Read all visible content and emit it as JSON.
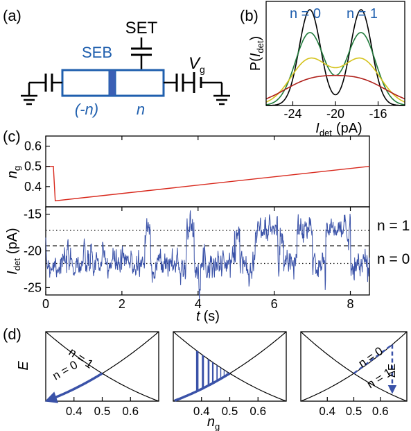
{
  "colors": {
    "blue": "#1f5fae",
    "axis": "#000000",
    "red": "#d8281c",
    "trace": "#3a52a8",
    "green": "#1f7a3a",
    "yellow": "#d4c21a",
    "darkred": "#b0201a"
  },
  "panel_a": {
    "label": "(a)",
    "set_label": "SET",
    "seb_label": "SEB",
    "vg_label": "V",
    "vg_sub": "g",
    "left_island": "(-n)",
    "right_island": "n"
  },
  "panel_b": {
    "label": "(b)",
    "n0_label": "n = 0",
    "n1_label": "n = 1",
    "ylabel_main": "P(",
    "ylabel_var": "I",
    "ylabel_sub": "det",
    "ylabel_close": ")",
    "xlabel_var": "I",
    "xlabel_sub": "det",
    "xlabel_unit": "(pA)",
    "xticks": [
      "-24",
      "-20",
      "-16"
    ]
  },
  "panel_c": {
    "label": "(c)",
    "ng_var": "n",
    "ng_sub": "g",
    "ng_yticks": [
      "0.6",
      "0.5",
      "0.4"
    ],
    "idet_var": "I",
    "idet_sub": "det",
    "idet_unit": "(pA)",
    "idet_yticks": [
      "-15",
      "-20",
      "-25"
    ],
    "xticks": [
      "0",
      "2",
      "4",
      "6",
      "8"
    ],
    "xlabel_var": "t",
    "xlabel_unit": "(s)",
    "n1_label": "n = 1",
    "n0_label": "n = 0"
  },
  "panel_d": {
    "label": "(d)",
    "ylabel": "E",
    "xlabel_var": "n",
    "xlabel_sub": "g",
    "xticks": [
      "0.4",
      "0.5",
      "0.6"
    ],
    "p1_n1": "n = 1",
    "p1_n0": "n = 0",
    "p3_n0": "n = 0",
    "p3_n1": "n = 1",
    "p3_delta": "ΔE"
  },
  "chart_data": [
    {
      "type": "line",
      "panel": "b",
      "xlabel": "I_det (pA)",
      "ylabel": "P(I_det)",
      "xlim": [
        -26.5,
        -13.5
      ],
      "series": [
        {
          "color": "black",
          "peaks": [
            {
              "mu": -22.4,
              "sigma": 1.0,
              "amp": 1.0
            },
            {
              "mu": -17.6,
              "sigma": 1.0,
              "amp": 1.0
            }
          ]
        },
        {
          "color": "green",
          "peaks": [
            {
              "mu": -22.4,
              "sigma": 1.35,
              "amp": 0.76
            },
            {
              "mu": -17.6,
              "sigma": 1.35,
              "amp": 0.76
            }
          ]
        },
        {
          "color": "yellow",
          "peaks": [
            {
              "mu": -22.4,
              "sigma": 1.8,
              "amp": 0.48
            },
            {
              "mu": -17.6,
              "sigma": 1.8,
              "amp": 0.48
            }
          ]
        },
        {
          "color": "red",
          "peaks": [
            {
              "mu": -22.4,
              "sigma": 2.6,
              "amp": 0.24
            },
            {
              "mu": -17.6,
              "sigma": 2.6,
              "amp": 0.24
            }
          ]
        }
      ]
    },
    {
      "type": "line",
      "panel": "c-top",
      "xlabel": "t (s)",
      "ylabel": "n_g",
      "xlim": [
        0,
        8.5
      ],
      "ylim": [
        0.3,
        0.65
      ],
      "x": [
        0,
        0.2,
        0.2,
        0.25,
        8.5
      ],
      "y": [
        0.5,
        0.5,
        0.5,
        0.33,
        0.5
      ]
    },
    {
      "type": "line",
      "panel": "c-bottom",
      "xlabel": "t (s)",
      "ylabel": "I_det (pA)",
      "xlim": [
        0,
        8.5
      ],
      "ylim": [
        -26,
        -14
      ],
      "levels": {
        "n1": -17.2,
        "threshold": -19.3,
        "n0": -21.7
      },
      "segments": [
        {
          "t0": 0.0,
          "t1": 2.6,
          "level": "n0"
        },
        {
          "t0": 2.6,
          "t1": 2.75,
          "level": "n1"
        },
        {
          "t0": 2.75,
          "t1": 3.7,
          "level": "n0"
        },
        {
          "t0": 3.7,
          "t1": 3.9,
          "level": "n1"
        },
        {
          "t0": 3.9,
          "t1": 4.95,
          "level": "n0"
        },
        {
          "t0": 4.95,
          "t1": 5.1,
          "level": "n1"
        },
        {
          "t0": 5.1,
          "t1": 5.5,
          "level": "n0"
        },
        {
          "t0": 5.5,
          "t1": 6.1,
          "level": "n1"
        },
        {
          "t0": 6.1,
          "t1": 6.15,
          "level": "n0"
        },
        {
          "t0": 6.15,
          "t1": 6.25,
          "level": "n1"
        },
        {
          "t0": 6.25,
          "t1": 6.6,
          "level": "n0"
        },
        {
          "t0": 6.6,
          "t1": 7.0,
          "level": "n1"
        },
        {
          "t0": 7.0,
          "t1": 7.35,
          "level": "n0"
        },
        {
          "t0": 7.35,
          "t1": 8.0,
          "level": "n1"
        },
        {
          "t0": 8.0,
          "t1": 8.5,
          "level": "n0"
        }
      ]
    },
    {
      "type": "line",
      "panel": "d",
      "xlabel": "n_g",
      "ylabel": "E",
      "xlim": [
        0.3,
        0.7
      ],
      "series": [
        {
          "name": "n = 0",
          "equation": "(n_g)^2"
        },
        {
          "name": "n = 1",
          "equation": "(1 - n_g)^2"
        }
      ]
    }
  ]
}
